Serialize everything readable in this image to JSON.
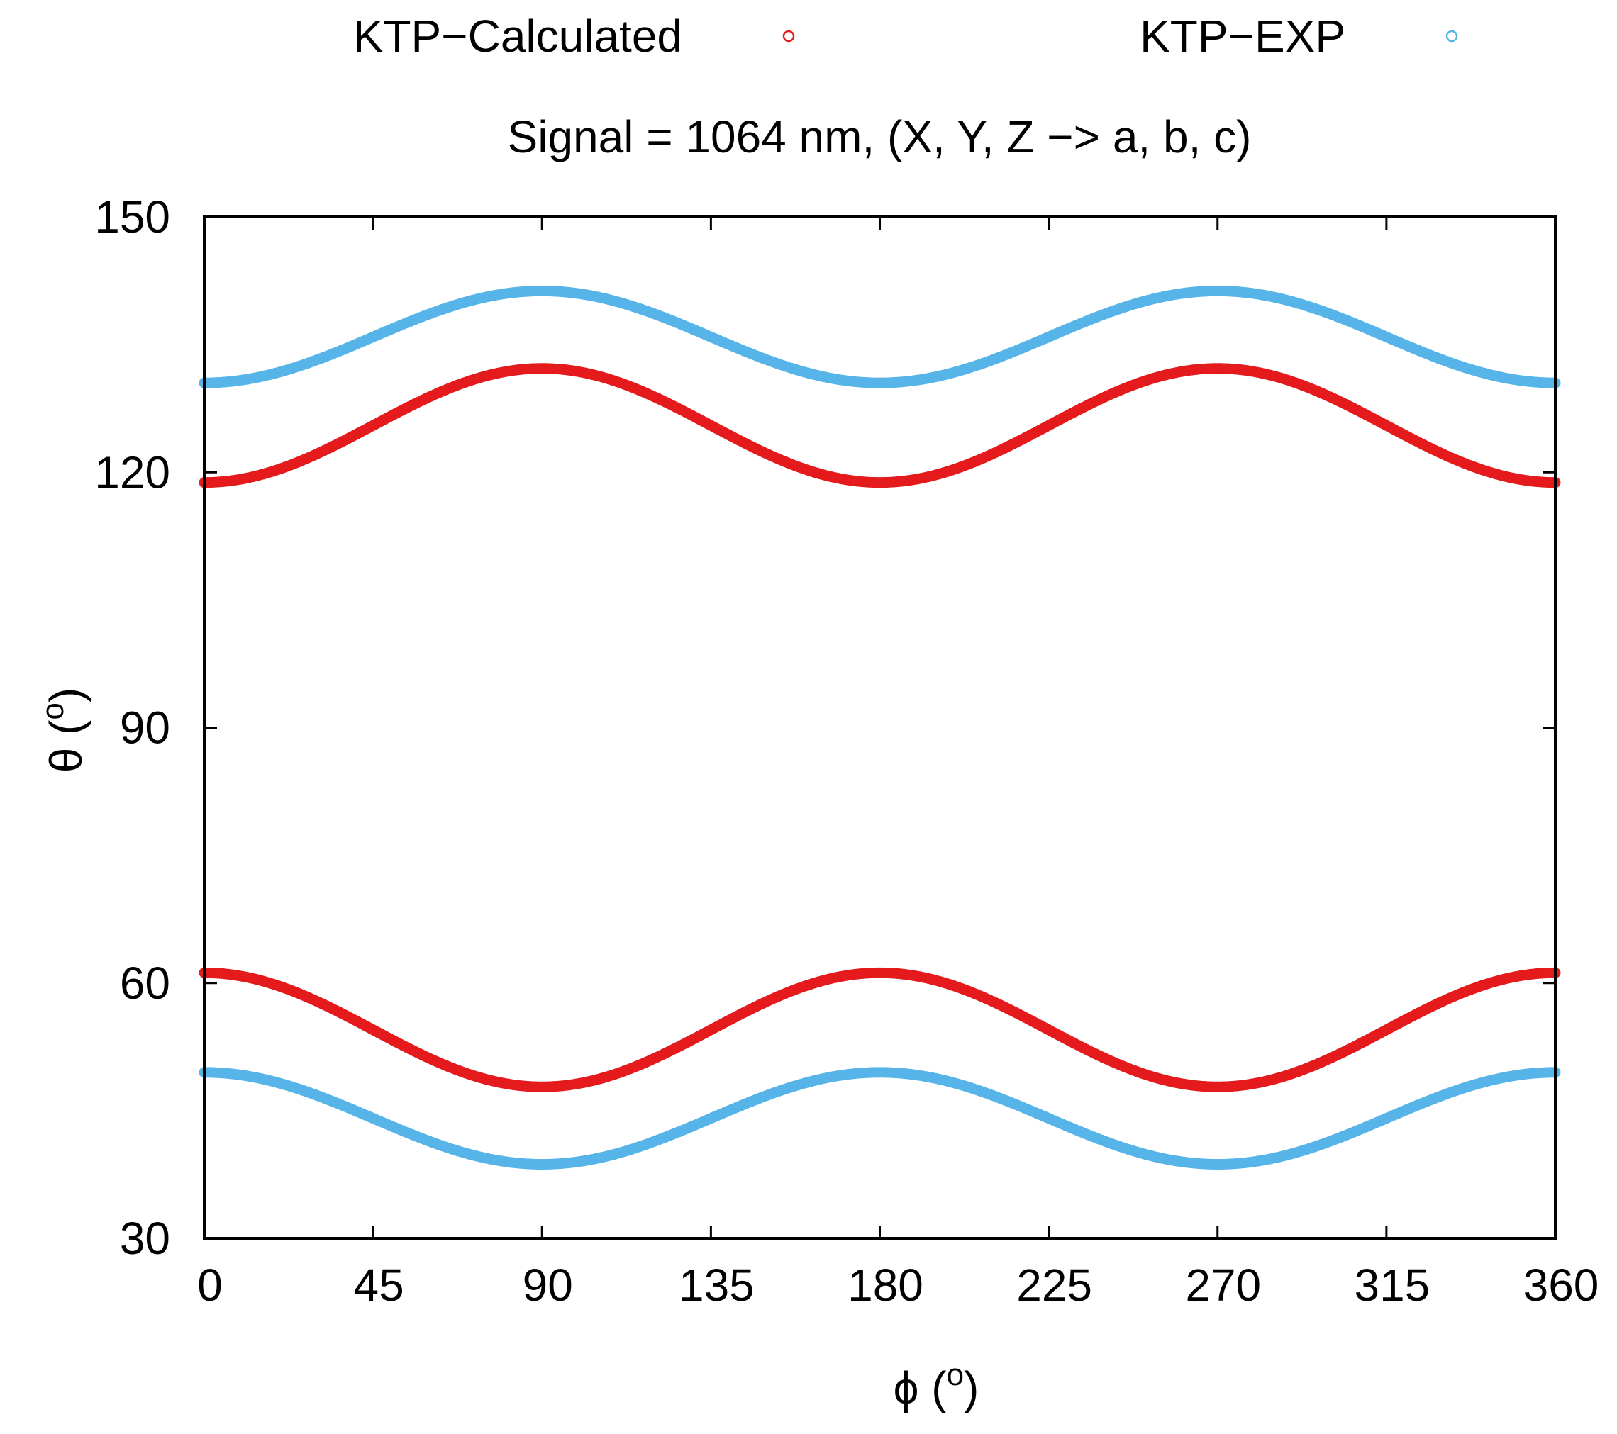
{
  "chart_data": {
    "type": "scatter",
    "title": "Signal = 1064 nm, (X, Y, Z −> a, b, c)",
    "xlabel": "ϕ (",
    "xlabel_sup": "o",
    "xlabel_end": ")",
    "ylabel": "θ (",
    "ylabel_sup": "o",
    "ylabel_end": ")",
    "xlim": [
      0,
      360
    ],
    "ylim": [
      30,
      150
    ],
    "xticks": [
      0,
      45,
      90,
      135,
      180,
      225,
      270,
      315,
      360
    ],
    "yticks": [
      30,
      60,
      90,
      120,
      150
    ],
    "grid": false,
    "legend_position": "top",
    "series": [
      {
        "name": "KTP−Calculated",
        "color": "#e41a1c",
        "marker": "open-circle",
        "branches": [
          {
            "theta_at_0": 118.8,
            "theta_at_90": 132.2
          },
          {
            "theta_at_0": 61.2,
            "theta_at_90": 47.8
          }
        ]
      },
      {
        "name": "KTP−EXP",
        "color": "#56b4e9",
        "marker": "open-circle",
        "branches": [
          {
            "theta_at_0": 130.5,
            "theta_at_90": 141.3
          },
          {
            "theta_at_0": 49.5,
            "theta_at_90": 38.7
          }
        ]
      }
    ]
  }
}
